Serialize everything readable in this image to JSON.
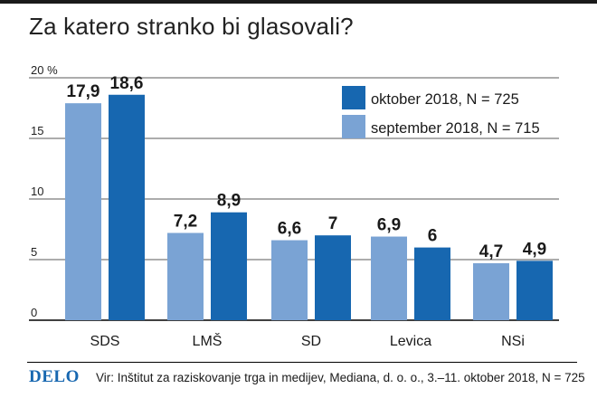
{
  "header": {
    "title": "Za katero stranko bi glasovali?"
  },
  "footer": {
    "logo": "DELO",
    "source": "Vir: Inštitut za raziskovanje trga in medijev, Mediana, d. o. o., 3.–11. oktober 2018, N = 725"
  },
  "chart_data": {
    "type": "bar",
    "title": "Za katero stranko bi glasovali?",
    "xlabel": "",
    "ylabel": "",
    "categories": [
      "SDS",
      "LMŠ",
      "SD",
      "Levica",
      "NSi"
    ],
    "series": [
      {
        "name": "september 2018, N = 715",
        "color": "#7aa3d4",
        "values": [
          17.9,
          7.2,
          6.6,
          6.9,
          4.7
        ],
        "labels": [
          "17,9",
          "7,2",
          "6,6",
          "6,9",
          "4,7"
        ]
      },
      {
        "name": "oktober 2018, N = 725",
        "color": "#1767b0",
        "values": [
          18.6,
          8.9,
          7,
          6,
          4.9
        ],
        "labels": [
          "18,6",
          "8,9",
          "7",
          "6",
          "4,9"
        ]
      }
    ],
    "ylim": [
      0,
      20
    ],
    "yticks": [
      0,
      5,
      10,
      15,
      20
    ],
    "ytick_labels": [
      "0",
      "5",
      "10",
      "15",
      "20 %"
    ],
    "grid": true,
    "legend": {
      "placement": "top-right",
      "order": [
        "oktober 2018, N = 725",
        "september 2018, N = 715"
      ]
    }
  }
}
